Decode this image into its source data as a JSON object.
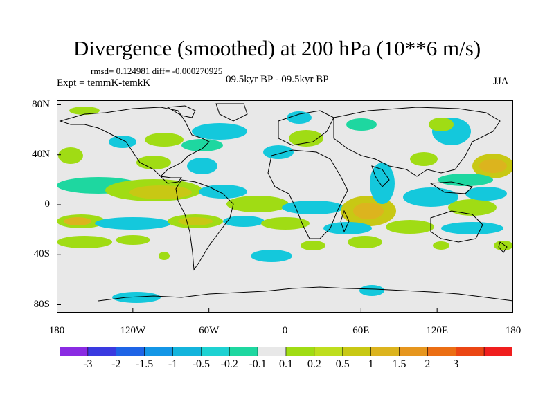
{
  "title": "Divergence (smoothed) at 200 hPa (10**6 m/s)",
  "stats": {
    "rmsd_text": "rmsd= 0.124981 diff= -0.000270925"
  },
  "experiment": "Expt = temmK-temkK",
  "period": "09.5kyr BP - 09.5kyr BP",
  "season": "JJA",
  "axes": {
    "lat_labels": [
      {
        "lat": 80,
        "text": "80N"
      },
      {
        "lat": 40,
        "text": "40N"
      },
      {
        "lat": 0,
        "text": "0"
      },
      {
        "lat": -40,
        "text": "40S"
      },
      {
        "lat": -80,
        "text": "80S"
      }
    ],
    "lon_labels": [
      {
        "lon": -180,
        "text": "180"
      },
      {
        "lon": -120,
        "text": "120W"
      },
      {
        "lon": -60,
        "text": "60W"
      },
      {
        "lon": 0,
        "text": "0"
      },
      {
        "lon": 60,
        "text": "60E"
      },
      {
        "lon": 120,
        "text": "120E"
      },
      {
        "lon": 180,
        "text": "180"
      }
    ]
  },
  "colorbar": {
    "colors": [
      "#8a2be2",
      "#3a3ae0",
      "#1e64e6",
      "#1496e6",
      "#14b4dc",
      "#1ed2d2",
      "#1ed7a0",
      "#e8e8e8",
      "#a0dc14",
      "#bede1e",
      "#c8c814",
      "#dcb41e",
      "#e6961e",
      "#eb6e14",
      "#eb4614",
      "#f01e1e"
    ],
    "labels": [
      "-3",
      "-2",
      "-1.5",
      "-1",
      "-0.5",
      "-0.2",
      "-0.1",
      "0.1",
      "0.2",
      "0.5",
      "1",
      "1.5",
      "2",
      "3"
    ]
  },
  "field_colors": {
    "background": "#e8e8e8",
    "neg_weak": "#1ed7a0",
    "neg_mid": "#14c8dc",
    "pos_weak": "#a0dc14",
    "pos_mid": "#c8c814",
    "pos_strong": "#dcb41e"
  }
}
